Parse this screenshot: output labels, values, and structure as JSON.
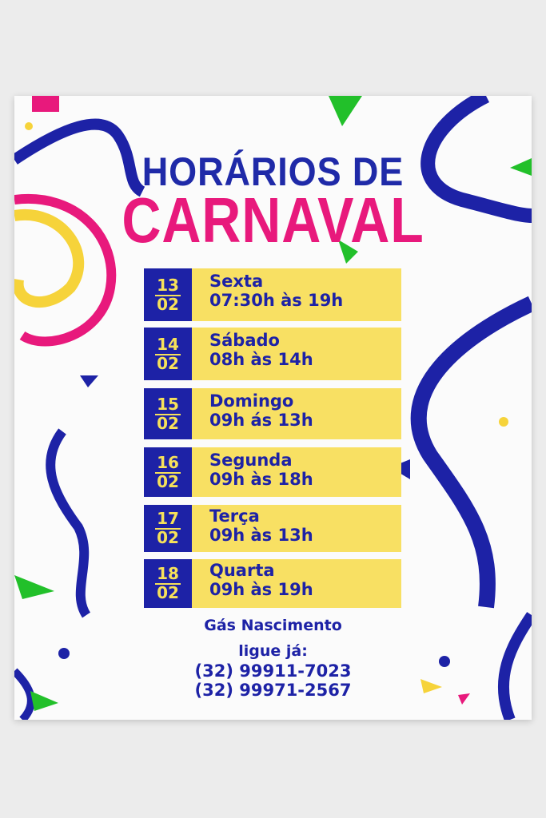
{
  "title": {
    "line1": "HORÁRIOS DE",
    "line2": "CARNAVAL"
  },
  "colors": {
    "blue": "#1d22a6",
    "pink": "#e8197c",
    "yellow": "#f8e063",
    "green": "#22c02a"
  },
  "schedule": [
    {
      "day": "13",
      "month": "02",
      "weekday": "Sexta",
      "hours": "07:30h às 19h"
    },
    {
      "day": "14",
      "month": "02",
      "weekday": "Sábado",
      "hours": "08h às 14h"
    },
    {
      "day": "15",
      "month": "02",
      "weekday": "Domingo",
      "hours": "09h ás 13h"
    },
    {
      "day": "16",
      "month": "02",
      "weekday": "Segunda",
      "hours": "09h às 18h"
    },
    {
      "day": "17",
      "month": "02",
      "weekday": "Terça",
      "hours": "09h às 13h"
    },
    {
      "day": "18",
      "month": "02",
      "weekday": "Quarta",
      "hours": "09h às 19h"
    }
  ],
  "footer": {
    "business": "Gás Nascimento",
    "cta": "ligue já:",
    "phone1": "(32) 99911-7023",
    "phone2": "(32) 99971-2567"
  }
}
